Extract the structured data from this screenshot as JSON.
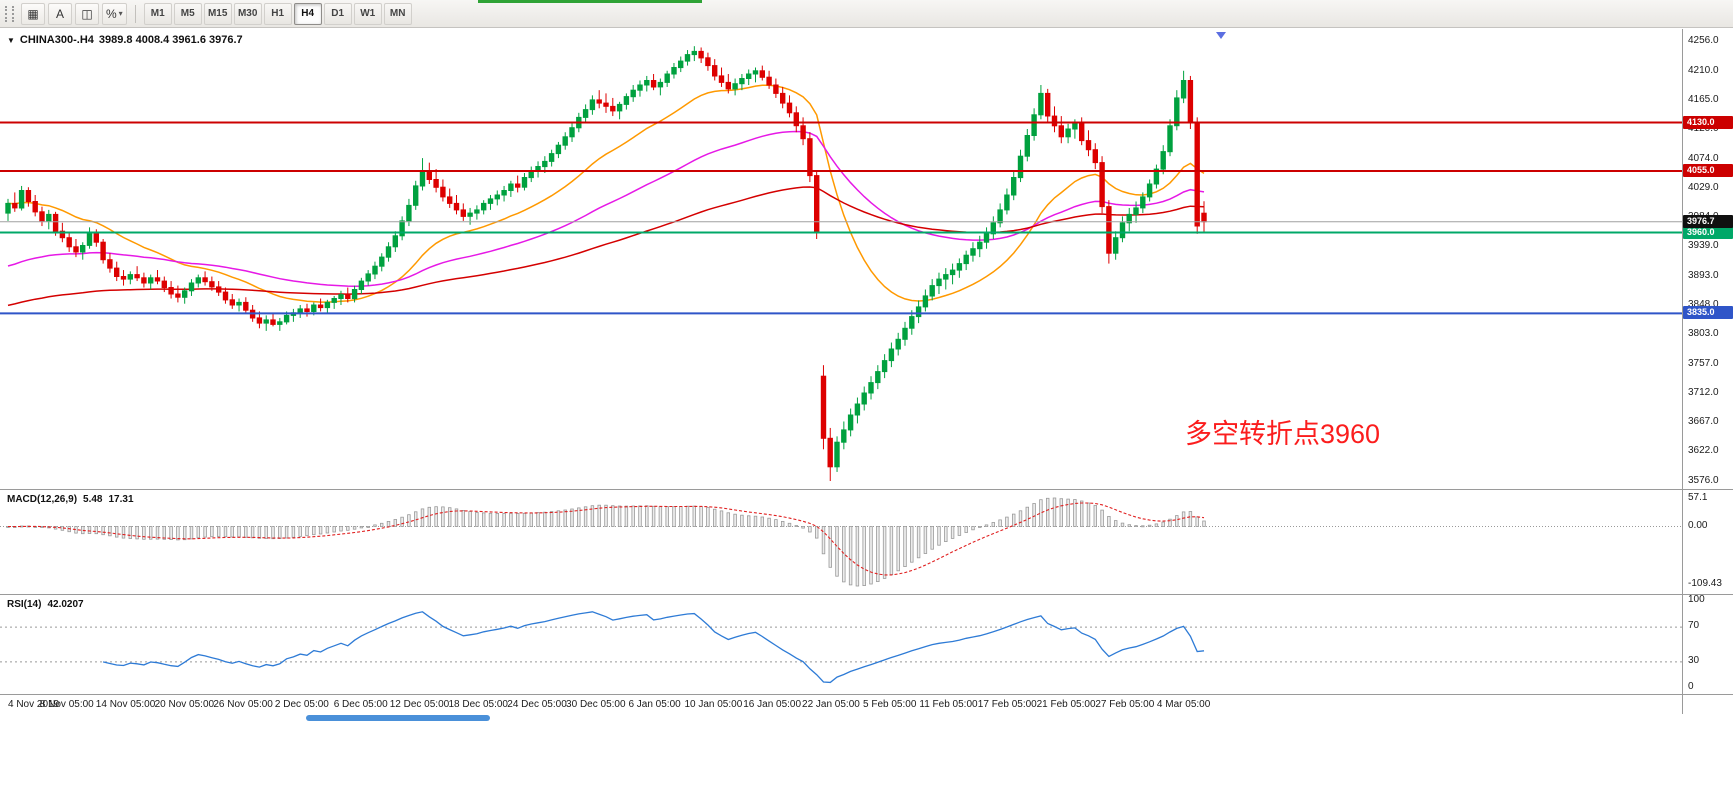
{
  "toolbar": {
    "tools": [
      {
        "name": "grid",
        "glyph": "▦"
      },
      {
        "name": "text",
        "glyph": "A"
      },
      {
        "name": "window",
        "glyph": "◫"
      },
      {
        "name": "percent_scale",
        "glyph": "%"
      }
    ],
    "timeframes": [
      "M1",
      "M5",
      "M15",
      "M30",
      "H1",
      "H4",
      "D1",
      "W1",
      "MN"
    ],
    "active_timeframe": "H4"
  },
  "chart": {
    "symbol_timeframe": "CHINA300-.H4",
    "ohlc_text": "3989.8 4008.4 3961.6 3976.7",
    "annotation": {
      "text": "多空转折点3960",
      "color": "#fb1d1d"
    },
    "price_axis_labels": [
      "4256.0",
      "4210.0",
      "4165.0",
      "4120.0",
      "4074.0",
      "4029.0",
      "3984.0",
      "3939.0",
      "3893.0",
      "3848.0",
      "3803.0",
      "3757.0",
      "3712.0",
      "3667.0",
      "3622.0",
      "3576.0"
    ],
    "hlines": [
      {
        "price": 4130.0,
        "badge": "4130.0",
        "color": "#cc0000",
        "width": 2
      },
      {
        "price": 4055.0,
        "badge": "4055.0",
        "color": "#cc0000",
        "width": 2
      },
      {
        "price": 3960.0,
        "badge": "3960.0",
        "color": "#00a868",
        "width": 2
      },
      {
        "price": 3835.0,
        "badge": "3835.0",
        "color": "#2f55c8",
        "width": 2
      }
    ],
    "current_price": {
      "value": 3976.7,
      "badge": "3976.7",
      "line_color": "#a0a0a0",
      "badge_bg": "#101010"
    },
    "moving_averages": [
      {
        "period": 22,
        "color": "#ff9900",
        "seed": null
      },
      {
        "period": 60,
        "color": "#e619e6",
        "seed": 3905
      },
      {
        "period": 130,
        "color": "#d40000",
        "seed": 3845
      }
    ],
    "up_color": "#00a13f",
    "down_color": "#dd0000"
  },
  "macd": {
    "label": "MACD(12,26,9)",
    "value1": "5.48",
    "value2": "17.31",
    "axis": [
      "57.1",
      "0.00",
      "-109.43"
    ],
    "fast": 12,
    "slow": 26,
    "signal": 9,
    "hist_fill": "#ececec",
    "hist_stroke": "#9a9a9a",
    "signal_color": "#e02020"
  },
  "rsi": {
    "label": "RSI(14)",
    "value": "42.0207",
    "axis": [
      "100",
      "70",
      "30",
      "0"
    ],
    "levels": [
      70,
      30
    ],
    "period": 14,
    "color": "#2e7bd6"
  },
  "chart_data": {
    "type": "candlestick",
    "title": "CHINA300- H4",
    "ylim": [
      3576,
      4256
    ],
    "x_labels": [
      "4 Nov 2019",
      "8 Nov 05:00",
      "14 Nov 05:00",
      "20 Nov 05:00",
      "26 Nov 05:00",
      "2 Dec 05:00",
      "6 Dec 05:00",
      "12 Dec 05:00",
      "18 Dec 05:00",
      "24 Dec 05:00",
      "30 Dec 05:00",
      "6 Jan 05:00",
      "10 Jan 05:00",
      "16 Jan 05:00",
      "22 Jan 05:00",
      "5 Feb 05:00",
      "11 Feb 05:00",
      "17 Feb 05:00",
      "21 Feb 05:00",
      "27 Feb 05:00",
      "4 Mar 05:00"
    ],
    "candles": [
      [
        3990,
        4012,
        3978,
        4005
      ],
      [
        4005,
        4022,
        3992,
        3998
      ],
      [
        3998,
        4032,
        3994,
        4025
      ],
      [
        4025,
        4030,
        4000,
        4008
      ],
      [
        4008,
        4018,
        3985,
        3992
      ],
      [
        3992,
        4000,
        3970,
        3978
      ],
      [
        3978,
        3995,
        3965,
        3988
      ],
      [
        3988,
        3992,
        3955,
        3962
      ],
      [
        3962,
        3975,
        3945,
        3952
      ],
      [
        3952,
        3960,
        3930,
        3938
      ],
      [
        3938,
        3950,
        3922,
        3930
      ],
      [
        3930,
        3945,
        3918,
        3940
      ],
      [
        3940,
        3968,
        3935,
        3958
      ],
      [
        3958,
        3965,
        3938,
        3945
      ],
      [
        3945,
        3950,
        3912,
        3918
      ],
      [
        3918,
        3928,
        3898,
        3905
      ],
      [
        3905,
        3915,
        3885,
        3892
      ],
      [
        3892,
        3902,
        3878,
        3888
      ],
      [
        3888,
        3900,
        3880,
        3895
      ],
      [
        3895,
        3908,
        3885,
        3890
      ],
      [
        3890,
        3898,
        3875,
        3882
      ],
      [
        3882,
        3895,
        3872,
        3890
      ],
      [
        3890,
        3902,
        3880,
        3885
      ],
      [
        3885,
        3892,
        3868,
        3875
      ],
      [
        3875,
        3885,
        3858,
        3865
      ],
      [
        3865,
        3878,
        3852,
        3860
      ],
      [
        3860,
        3875,
        3850,
        3870
      ],
      [
        3870,
        3888,
        3862,
        3882
      ],
      [
        3882,
        3895,
        3875,
        3890
      ],
      [
        3890,
        3900,
        3878,
        3884
      ],
      [
        3884,
        3892,
        3870,
        3876
      ],
      [
        3876,
        3885,
        3862,
        3868
      ],
      [
        3868,
        3875,
        3850,
        3856
      ],
      [
        3856,
        3865,
        3842,
        3848
      ],
      [
        3848,
        3858,
        3838,
        3852
      ],
      [
        3852,
        3860,
        3835,
        3840
      ],
      [
        3840,
        3848,
        3822,
        3828
      ],
      [
        3828,
        3838,
        3812,
        3820
      ],
      [
        3820,
        3832,
        3808,
        3825
      ],
      [
        3825,
        3835,
        3815,
        3818
      ],
      [
        3818,
        3828,
        3808,
        3822
      ],
      [
        3822,
        3838,
        3818,
        3832
      ],
      [
        3832,
        3842,
        3822,
        3836
      ],
      [
        3836,
        3848,
        3828,
        3842
      ],
      [
        3842,
        3850,
        3830,
        3838
      ],
      [
        3838,
        3852,
        3832,
        3848
      ],
      [
        3848,
        3858,
        3838,
        3844
      ],
      [
        3844,
        3856,
        3836,
        3852
      ],
      [
        3852,
        3862,
        3842,
        3858
      ],
      [
        3858,
        3870,
        3848,
        3864
      ],
      [
        3864,
        3875,
        3852,
        3858
      ],
      [
        3858,
        3878,
        3852,
        3872
      ],
      [
        3872,
        3890,
        3865,
        3885
      ],
      [
        3885,
        3902,
        3878,
        3896
      ],
      [
        3896,
        3915,
        3888,
        3908
      ],
      [
        3908,
        3928,
        3900,
        3922
      ],
      [
        3922,
        3945,
        3915,
        3938
      ],
      [
        3938,
        3962,
        3930,
        3955
      ],
      [
        3955,
        3985,
        3948,
        3978
      ],
      [
        3978,
        4012,
        3970,
        4002
      ],
      [
        4002,
        4040,
        3995,
        4032
      ],
      [
        4032,
        4075,
        4025,
        4055
      ],
      [
        4055,
        4068,
        4035,
        4042
      ],
      [
        4042,
        4058,
        4022,
        4030
      ],
      [
        4030,
        4042,
        4008,
        4015
      ],
      [
        4015,
        4028,
        3998,
        4005
      ],
      [
        4005,
        4018,
        3988,
        3995
      ],
      [
        3995,
        4005,
        3978,
        3985
      ],
      [
        3985,
        3998,
        3972,
        3990
      ],
      [
        3990,
        4002,
        3980,
        3995
      ],
      [
        3995,
        4010,
        3988,
        4005
      ],
      [
        4005,
        4018,
        3995,
        4012
      ],
      [
        4012,
        4025,
        4002,
        4018
      ],
      [
        4018,
        4032,
        4008,
        4025
      ],
      [
        4025,
        4040,
        4015,
        4035
      ],
      [
        4035,
        4048,
        4022,
        4030
      ],
      [
        4030,
        4052,
        4025,
        4045
      ],
      [
        4045,
        4062,
        4038,
        4055
      ],
      [
        4055,
        4070,
        4045,
        4062
      ],
      [
        4062,
        4078,
        4052,
        4070
      ],
      [
        4070,
        4088,
        4062,
        4082
      ],
      [
        4082,
        4100,
        4075,
        4095
      ],
      [
        4095,
        4115,
        4088,
        4108
      ],
      [
        4108,
        4130,
        4100,
        4122
      ],
      [
        4122,
        4145,
        4115,
        4138
      ],
      [
        4138,
        4158,
        4130,
        4150
      ],
      [
        4150,
        4172,
        4142,
        4165
      ],
      [
        4165,
        4180,
        4152,
        4160
      ],
      [
        4160,
        4175,
        4145,
        4155
      ],
      [
        4155,
        4168,
        4140,
        4148
      ],
      [
        4148,
        4162,
        4135,
        4158
      ],
      [
        4158,
        4175,
        4150,
        4170
      ],
      [
        4170,
        4188,
        4162,
        4180
      ],
      [
        4180,
        4195,
        4170,
        4188
      ],
      [
        4188,
        4202,
        4178,
        4195
      ],
      [
        4195,
        4205,
        4180,
        4185
      ],
      [
        4185,
        4198,
        4172,
        4192
      ],
      [
        4192,
        4210,
        4185,
        4205
      ],
      [
        4205,
        4222,
        4198,
        4215
      ],
      [
        4215,
        4232,
        4208,
        4225
      ],
      [
        4225,
        4242,
        4218,
        4235
      ],
      [
        4235,
        4248,
        4225,
        4240
      ],
      [
        4240,
        4246,
        4222,
        4230
      ],
      [
        4230,
        4238,
        4210,
        4218
      ],
      [
        4218,
        4228,
        4195,
        4202
      ],
      [
        4202,
        4215,
        4185,
        4192
      ],
      [
        4192,
        4205,
        4175,
        4182
      ],
      [
        4182,
        4198,
        4172,
        4190
      ],
      [
        4190,
        4205,
        4180,
        4198
      ],
      [
        4198,
        4212,
        4188,
        4205
      ],
      [
        4205,
        4215,
        4192,
        4210
      ],
      [
        4210,
        4218,
        4195,
        4200
      ],
      [
        4200,
        4210,
        4182,
        4188
      ],
      [
        4188,
        4198,
        4168,
        4175
      ],
      [
        4175,
        4185,
        4152,
        4160
      ],
      [
        4160,
        4172,
        4138,
        4145
      ],
      [
        4145,
        4155,
        4115,
        4125
      ],
      [
        4125,
        4138,
        4095,
        4105
      ],
      [
        4105,
        4115,
        4038,
        4048
      ],
      [
        4048,
        4055,
        3950,
        3960
      ],
      [
        3738,
        3755,
        3625,
        3642
      ],
      [
        3642,
        3658,
        3576,
        3598
      ],
      [
        3598,
        3645,
        3590,
        3636
      ],
      [
        3636,
        3668,
        3625,
        3655
      ],
      [
        3655,
        3688,
        3645,
        3678
      ],
      [
        3678,
        3705,
        3665,
        3695
      ],
      [
        3695,
        3722,
        3685,
        3712
      ],
      [
        3712,
        3738,
        3702,
        3728
      ],
      [
        3728,
        3755,
        3718,
        3745
      ],
      [
        3745,
        3772,
        3735,
        3762
      ],
      [
        3762,
        3790,
        3752,
        3780
      ],
      [
        3780,
        3805,
        3770,
        3795
      ],
      [
        3795,
        3822,
        3785,
        3812
      ],
      [
        3812,
        3840,
        3802,
        3830
      ],
      [
        3830,
        3855,
        3820,
        3845
      ],
      [
        3845,
        3872,
        3838,
        3862
      ],
      [
        3862,
        3888,
        3855,
        3878
      ],
      [
        3878,
        3898,
        3865,
        3888
      ],
      [
        3888,
        3905,
        3872,
        3895
      ],
      [
        3895,
        3912,
        3880,
        3902
      ],
      [
        3902,
        3920,
        3890,
        3912
      ],
      [
        3912,
        3932,
        3902,
        3925
      ],
      [
        3925,
        3945,
        3915,
        3935
      ],
      [
        3935,
        3955,
        3922,
        3945
      ],
      [
        3945,
        3968,
        3935,
        3958
      ],
      [
        3958,
        3985,
        3950,
        3975
      ],
      [
        3975,
        4005,
        3968,
        3995
      ],
      [
        3995,
        4028,
        3988,
        4018
      ],
      [
        4018,
        4055,
        4010,
        4045
      ],
      [
        4045,
        4088,
        4038,
        4078
      ],
      [
        4078,
        4120,
        4070,
        4110
      ],
      [
        4110,
        4152,
        4102,
        4142
      ],
      [
        4142,
        4188,
        4135,
        4175
      ],
      [
        4175,
        4182,
        4130,
        4140
      ],
      [
        4140,
        4155,
        4115,
        4125
      ],
      [
        4125,
        4140,
        4098,
        4108
      ],
      [
        4108,
        4128,
        4098,
        4120
      ],
      [
        4120,
        4135,
        4105,
        4128
      ],
      [
        4128,
        4138,
        4095,
        4102
      ],
      [
        4102,
        4118,
        4078,
        4088
      ],
      [
        4088,
        4098,
        4058,
        4068
      ],
      [
        4068,
        4078,
        3990,
        4000
      ],
      [
        4000,
        4010,
        3912,
        3928
      ],
      [
        3928,
        3962,
        3918,
        3952
      ],
      [
        3952,
        3985,
        3945,
        3975
      ],
      [
        3975,
        3998,
        3962,
        3988
      ],
      [
        3988,
        4008,
        3975,
        3998
      ],
      [
        3998,
        4022,
        3990,
        4015
      ],
      [
        4015,
        4042,
        4008,
        4035
      ],
      [
        4035,
        4065,
        4028,
        4058
      ],
      [
        4058,
        4095,
        4050,
        4085
      ],
      [
        4085,
        4135,
        4078,
        4125
      ],
      [
        4125,
        4180,
        4118,
        4168
      ],
      [
        4168,
        4210,
        4160,
        4195
      ],
      [
        4195,
        4202,
        4120,
        4130
      ],
      [
        4130,
        4138,
        3958,
        3970
      ],
      [
        3989.8,
        4008.4,
        3961.6,
        3976.7
      ]
    ]
  }
}
